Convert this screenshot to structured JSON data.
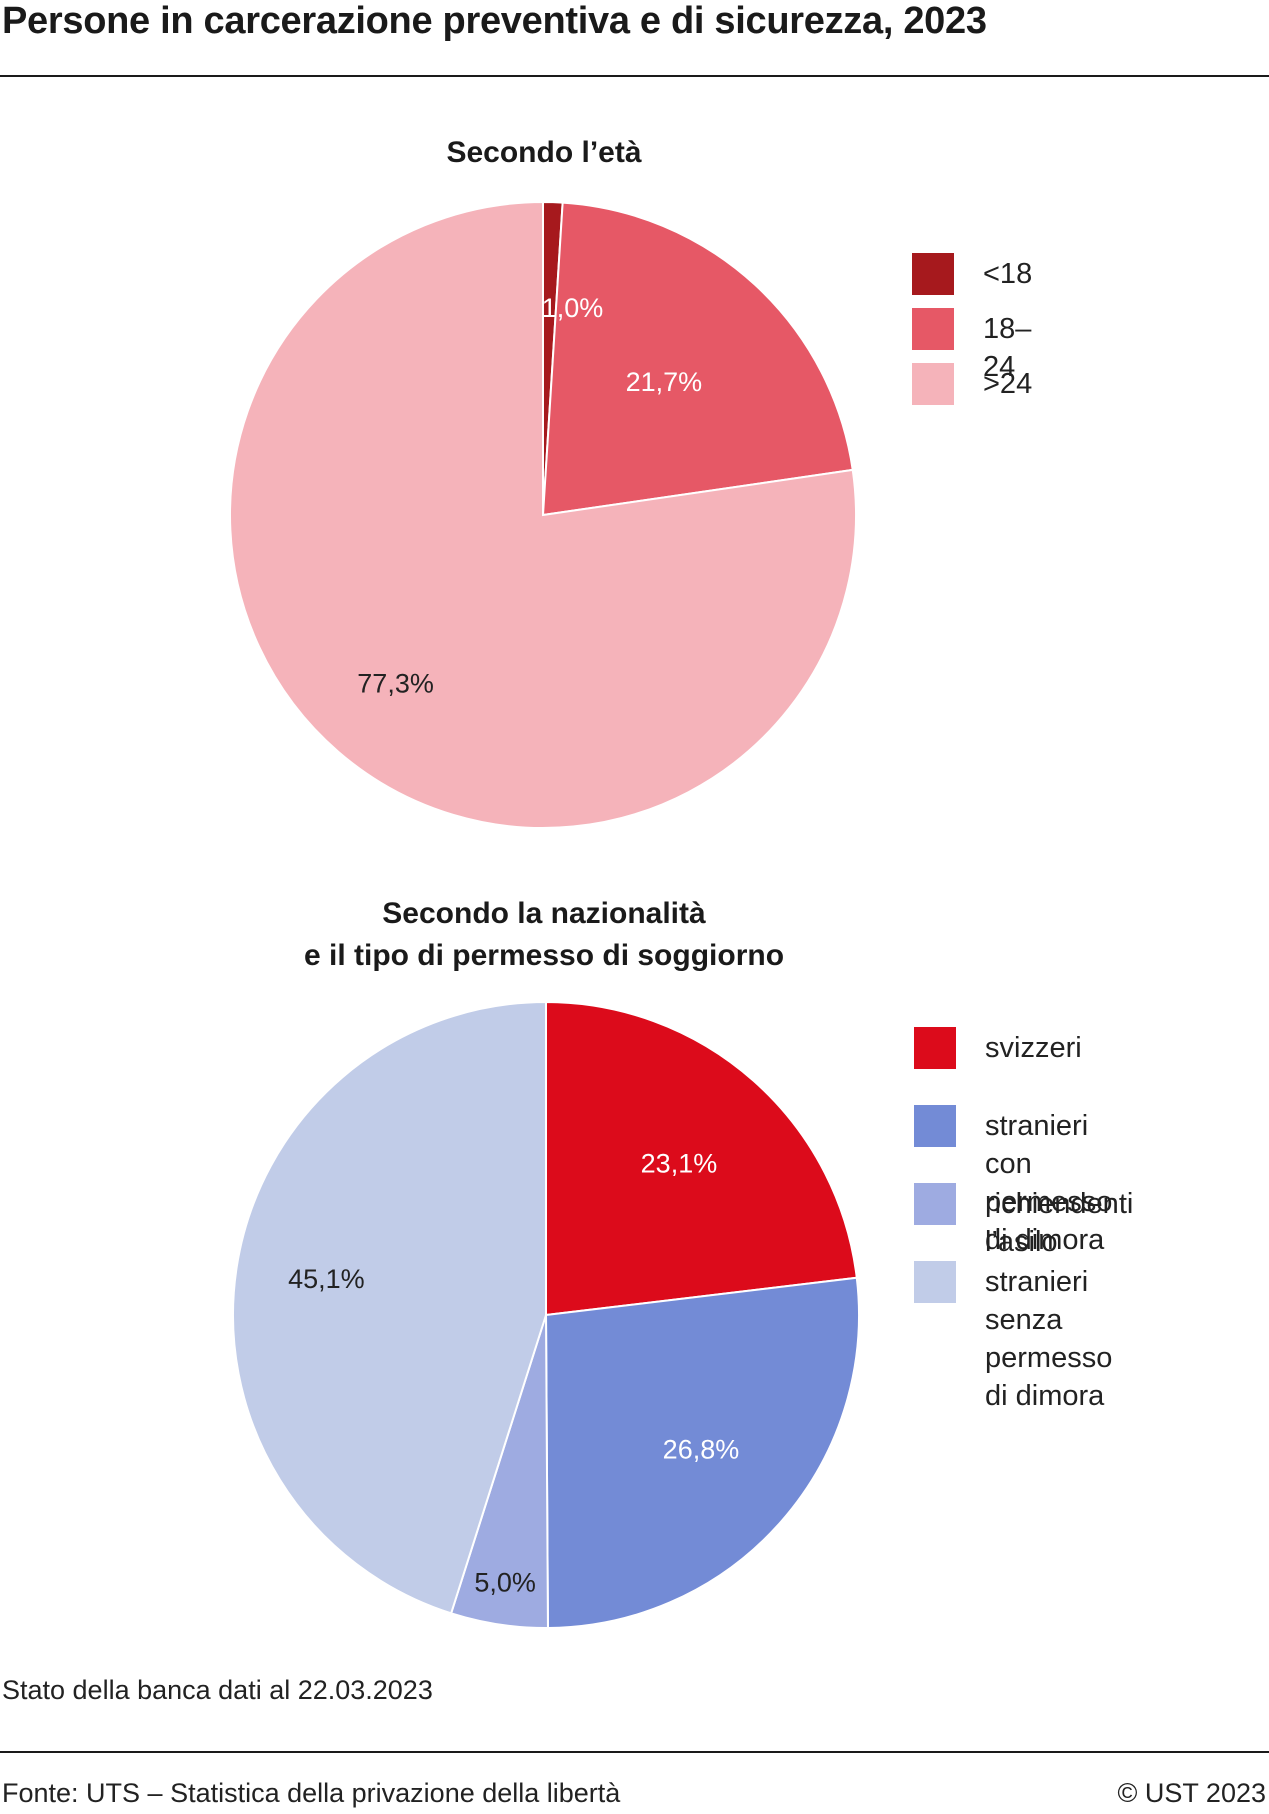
{
  "title": "Persone in carcerazione preventiva e di sicurezza, 2023",
  "note": "Stato della banca dati al 22.03.2023",
  "source": "Fonte: UTS – Statistica della privazione della libertà",
  "copyright": "© UST 2023",
  "chart_data": [
    {
      "type": "pie",
      "title": "Secondo l’età",
      "legend_position": "right",
      "slices": [
        {
          "label": "<18",
          "value": 1.0,
          "value_label": "1,0%",
          "color": "#a6191d",
          "label_color": "#ffffff"
        },
        {
          "label": "18–24",
          "value": 21.7,
          "value_label": "21,7%",
          "color": "#e65866",
          "label_color": "#ffffff"
        },
        {
          "label": ">24",
          "value": 77.3,
          "value_label": "77,3%",
          "color": "#f5b3ba",
          "label_color": "#222222"
        }
      ]
    },
    {
      "type": "pie",
      "title": "Secondo la nazionalità\ne il tipo di permesso di soggiorno",
      "title_lines": [
        "Secondo la nazionalità",
        "e il tipo di permesso di soggiorno"
      ],
      "legend_position": "right",
      "slices": [
        {
          "label": "svizzeri",
          "value": 23.1,
          "value_label": "23,1%",
          "color": "#dc0b1b",
          "label_color": "#ffffff"
        },
        {
          "label": "stranieri con\npermesso di dimora",
          "value": 26.8,
          "value_label": "26,8%",
          "color": "#738bd6",
          "label_color": "#ffffff"
        },
        {
          "label": "richiendenti l’asilo",
          "value": 5.0,
          "value_label": "5,0%",
          "color": "#9eabe1",
          "label_color": "#222222"
        },
        {
          "label": "stranieri senza\npermesso di dimora",
          "value": 45.1,
          "value_label": "45,1%",
          "color": "#c1cce8",
          "label_color": "#222222"
        }
      ]
    }
  ]
}
